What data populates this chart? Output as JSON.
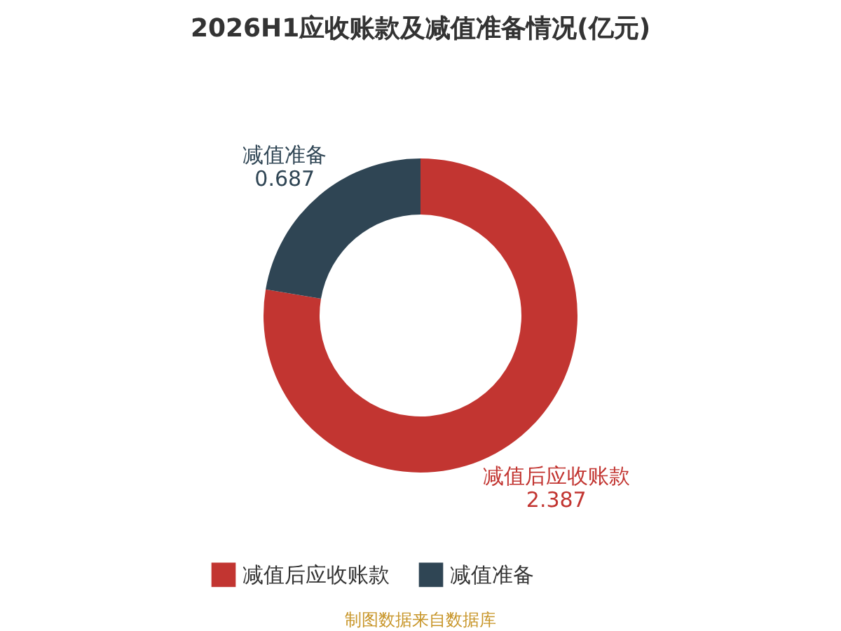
{
  "chart_data": {
    "type": "donut",
    "title": "2026H1应收账款及减值准备情况(亿元)",
    "categories": [
      "减值后应收账款",
      "减值准备"
    ],
    "values": [
      2.387,
      0.687
    ],
    "colors": [
      "#c23531",
      "#2f4554"
    ],
    "data_labels": true,
    "legend": "bottom",
    "annotations": [
      "制图数据来自数据库"
    ]
  }
}
